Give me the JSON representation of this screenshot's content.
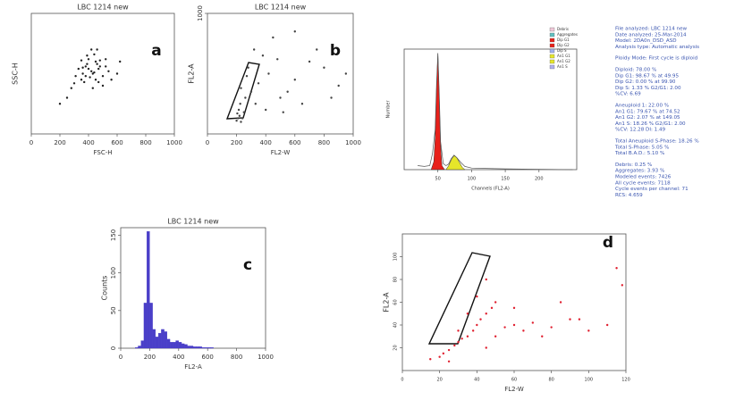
{
  "chart_data": [
    {
      "type": "scatter",
      "panel_label": "a",
      "title": "LBC 1214 new",
      "x_label": "FSC-H",
      "y_label": "SSC-H",
      "color": "#222222",
      "xlim": [
        0,
        1000
      ],
      "xticks": [
        0,
        200,
        400,
        600,
        800,
        1000
      ],
      "ylim": [
        0,
        1000
      ],
      "x": [
        420,
        380,
        450,
        500,
        350,
        400,
        470,
        430,
        390,
        520,
        300,
        360,
        440,
        480,
        410,
        460,
        330,
        370,
        500,
        540,
        280,
        250,
        560,
        600,
        420,
        390,
        450,
        350,
        430,
        470,
        310,
        200,
        620,
        480,
        400,
        520,
        440,
        360,
        380,
        460
      ],
      "y": [
        520,
        560,
        600,
        480,
        450,
        620,
        540,
        500,
        580,
        560,
        420,
        500,
        660,
        610,
        470,
        580,
        540,
        430,
        400,
        520,
        380,
        300,
        450,
        500,
        700,
        650,
        450,
        610,
        380,
        430,
        480,
        250,
        600,
        560,
        540,
        620,
        510,
        550,
        480,
        700
      ]
    },
    {
      "type": "scatter",
      "panel_label": "b",
      "title": "LBC 1214 new",
      "x_label": "FL2-W",
      "y_label": "FL2-A",
      "color": "#444444",
      "xlim": [
        0,
        1000
      ],
      "xticks": [
        0,
        200,
        400,
        600,
        800,
        1000
      ],
      "ylim": [
        0,
        1000
      ],
      "yticks": [
        1000
      ],
      "x": [
        200,
        210,
        220,
        230,
        205,
        215,
        240,
        225,
        250,
        260,
        300,
        350,
        420,
        500,
        600,
        700,
        800,
        900,
        320,
        380,
        450,
        550,
        650,
        750,
        850,
        280,
        330,
        230,
        270,
        400,
        480,
        600,
        950,
        520
      ],
      "y": [
        110,
        130,
        150,
        100,
        170,
        200,
        130,
        250,
        180,
        300,
        350,
        420,
        500,
        300,
        450,
        600,
        550,
        400,
        700,
        650,
        800,
        350,
        250,
        700,
        300,
        550,
        250,
        380,
        480,
        200,
        620,
        850,
        500,
        180
      ]
    },
    {
      "type": "histogram",
      "panel_label": "c",
      "title": "LBC 1214 new",
      "x_label": "FL2-A",
      "y_label": "Counts",
      "color": "#4a3fc8",
      "xlim": [
        0,
        1000
      ],
      "xticks": [
        0,
        200,
        400,
        600,
        800,
        1000
      ],
      "ylim": [
        0,
        160
      ],
      "yticks": [
        0,
        50,
        100,
        150
      ],
      "bins": [
        0,
        20,
        40,
        60,
        80,
        100,
        120,
        140,
        160,
        180,
        200,
        220,
        240,
        260,
        280,
        300,
        320,
        340,
        360,
        380,
        400,
        420,
        440,
        460,
        480,
        500,
        520,
        540,
        560,
        580,
        600,
        620,
        640,
        660,
        680,
        700,
        720,
        740,
        760,
        780,
        800,
        820,
        840,
        860,
        880,
        900,
        920,
        940,
        960,
        980,
        1000
      ],
      "counts": [
        0,
        0,
        0,
        0,
        0,
        1,
        3,
        10,
        60,
        155,
        60,
        25,
        15,
        20,
        25,
        22,
        12,
        8,
        8,
        10,
        8,
        6,
        5,
        3,
        3,
        2,
        2,
        2,
        1,
        1,
        1,
        1,
        0,
        0,
        0,
        0,
        0,
        0,
        0,
        0,
        0,
        0,
        0,
        0,
        0,
        0,
        0,
        0,
        0,
        0
      ]
    },
    {
      "type": "area",
      "x_label": "Channels (FL2-A)",
      "y_label": "Number",
      "xlim": [
        0,
        256
      ],
      "xticks": [
        50,
        100,
        150,
        200
      ],
      "ylim": [
        0,
        300
      ],
      "series": [
        {
          "name": "Dip G1",
          "color": "#e8201a",
          "x": [
            40,
            44,
            46,
            48,
            50,
            52,
            54,
            56,
            60
          ],
          "values": [
            0,
            20,
            80,
            200,
            290,
            180,
            60,
            10,
            0
          ]
        },
        {
          "name": "An1 G1",
          "color": "#e6e62a",
          "x": [
            62,
            66,
            70,
            74,
            78,
            82,
            86,
            90
          ],
          "values": [
            0,
            10,
            25,
            35,
            30,
            18,
            6,
            0
          ]
        }
      ],
      "data_curve": {
        "x": [
          20,
          30,
          38,
          42,
          46,
          48,
          50,
          52,
          54,
          58,
          62,
          66,
          70,
          74,
          78,
          84,
          90,
          100,
          120,
          150,
          200,
          250
        ],
        "values": [
          10,
          8,
          10,
          40,
          100,
          210,
          290,
          190,
          70,
          15,
          10,
          14,
          28,
          36,
          30,
          18,
          8,
          4,
          3,
          2,
          1,
          0
        ]
      },
      "legend": [
        {
          "name": "Debris",
          "color": "#f0c8d8"
        },
        {
          "name": "Aggregates",
          "color": "#60c0c0"
        },
        {
          "name": "Dip G1",
          "color": "#e8201a"
        },
        {
          "name": "Dip G2",
          "color": "#e8201a"
        },
        {
          "name": "Dip S",
          "color": "#9fb0f0"
        },
        {
          "name": "An1 G1",
          "color": "#e6e62a"
        },
        {
          "name": "An1 G2",
          "color": "#e6e62a"
        },
        {
          "name": "An1 S",
          "color": "#b0b0f0"
        }
      ],
      "stats": [
        [
          "File analyzed: LBC 1214 new",
          "Date analyzed: 25-Mar-2014",
          "Model: 2DA0n_DSD_ASD",
          "Analysis type: Automatic analysis"
        ],
        [
          "Ploidy Mode: First cycle is diploid"
        ],
        [
          "Diploid: 78.00 %",
          "Dip G1: 98.67 % at 49.95",
          "Dip G2: 0.00 % at 99.90",
          "Dip S: 1.33 %   G2/G1: 2.00",
          "%CV: 6.69"
        ],
        [
          "Aneuploid 1: 22.00 %",
          "An1 G1: 79.67 % at 74.52",
          "An1 G2: 2.07 % at 149.05",
          "An1 S: 18.26 %   G2/G1: 2.00",
          "%CV: 12.28   DI: 1.49"
        ],
        [
          "Total Aneuploid S-Phase: 18.26 %",
          "Total S-Phase: 5.05 %",
          "Total B.A.D.: 5.10 %"
        ],
        [
          "Debris: 0.25 %",
          "Aggregates: 3.93 %",
          "Modeled events: 7426",
          "All cycle events: 7118",
          "Cycle events per channel: 71",
          "RCS: 4.659"
        ]
      ]
    },
    {
      "type": "scatter",
      "panel_label": "d",
      "x_label": "FL2-W",
      "y_label": "FL2-A",
      "color": "#e02030",
      "xlim": [
        0,
        120
      ],
      "xticks": [
        0,
        20,
        40,
        60,
        80,
        100,
        120
      ],
      "ylim": [
        0,
        120
      ],
      "yticks": [
        20,
        40,
        60,
        80,
        100
      ],
      "x": [
        15,
        20,
        22,
        25,
        28,
        30,
        32,
        35,
        38,
        40,
        42,
        45,
        48,
        50,
        55,
        60,
        65,
        70,
        75,
        80,
        90,
        100,
        110,
        118,
        35,
        40,
        45,
        30,
        50,
        60,
        85,
        95,
        115,
        25,
        45
      ],
      "y": [
        10,
        12,
        15,
        18,
        22,
        25,
        28,
        30,
        35,
        40,
        45,
        50,
        55,
        60,
        38,
        40,
        35,
        42,
        30,
        38,
        45,
        35,
        40,
        75,
        50,
        65,
        80,
        35,
        30,
        55,
        60,
        45,
        90,
        8,
        20
      ]
    }
  ]
}
